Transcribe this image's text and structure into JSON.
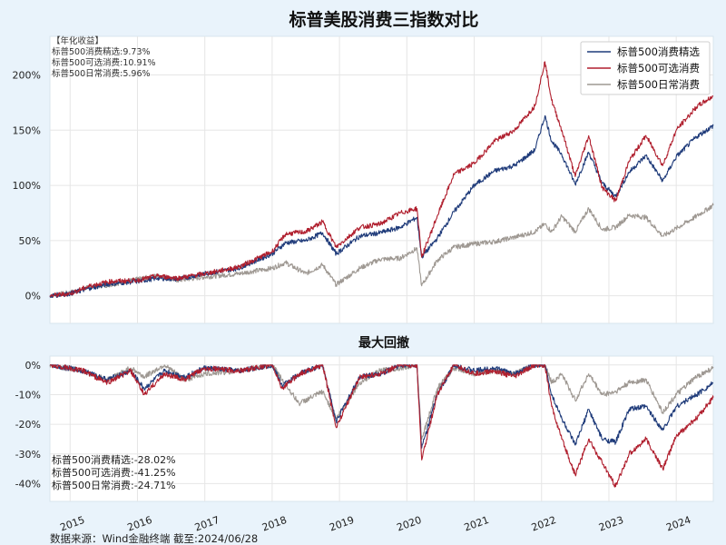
{
  "chart_data": [
    {
      "type": "line",
      "title": "标普美股消费三指数对比",
      "ylim": [
        -25,
        235
      ],
      "yticks": [
        "0%",
        "50%",
        "100%",
        "150%",
        "200%"
      ],
      "ytick_values": [
        0,
        50,
        100,
        150,
        200
      ],
      "xlim": [
        2014.7,
        2024.55
      ],
      "annual_return_header": "【年化收益】",
      "annual_returns": [
        "标普500消费精选:9.73%",
        "标普500可选消费:10.91%",
        "标普500日常消费:5.96%"
      ],
      "legend_position": "top-right",
      "series": [
        {
          "name": "标普500消费精选",
          "color": "#1f3b7a",
          "points": [
            [
              2014.7,
              0
            ],
            [
              2015.0,
              2
            ],
            [
              2015.3,
              7
            ],
            [
              2015.6,
              11
            ],
            [
              2016.0,
              13
            ],
            [
              2016.3,
              16
            ],
            [
              2016.6,
              15
            ],
            [
              2017.0,
              20
            ],
            [
              2017.5,
              25
            ],
            [
              2018.0,
              38
            ],
            [
              2018.2,
              48
            ],
            [
              2018.5,
              50
            ],
            [
              2018.75,
              57
            ],
            [
              2018.95,
              38
            ],
            [
              2019.3,
              54
            ],
            [
              2019.6,
              57
            ],
            [
              2019.9,
              62
            ],
            [
              2020.15,
              71
            ],
            [
              2020.22,
              35
            ],
            [
              2020.45,
              52
            ],
            [
              2020.7,
              76
            ],
            [
              2021.0,
              100
            ],
            [
              2021.3,
              113
            ],
            [
              2021.6,
              118
            ],
            [
              2021.9,
              132
            ],
            [
              2022.05,
              163
            ],
            [
              2022.15,
              140
            ],
            [
              2022.3,
              128
            ],
            [
              2022.5,
              101
            ],
            [
              2022.7,
              130
            ],
            [
              2022.9,
              102
            ],
            [
              2023.1,
              90
            ],
            [
              2023.3,
              112
            ],
            [
              2023.55,
              127
            ],
            [
              2023.8,
              104
            ],
            [
              2024.0,
              126
            ],
            [
              2024.3,
              144
            ],
            [
              2024.55,
              154
            ]
          ]
        },
        {
          "name": "标普500可选消费",
          "color": "#b01f2e",
          "points": [
            [
              2014.7,
              0
            ],
            [
              2015.0,
              2
            ],
            [
              2015.3,
              9
            ],
            [
              2015.6,
              13
            ],
            [
              2016.0,
              14
            ],
            [
              2016.3,
              18
            ],
            [
              2016.6,
              16
            ],
            [
              2017.0,
              20
            ],
            [
              2017.5,
              26
            ],
            [
              2018.0,
              40
            ],
            [
              2018.2,
              56
            ],
            [
              2018.5,
              58
            ],
            [
              2018.75,
              67
            ],
            [
              2018.95,
              44
            ],
            [
              2019.3,
              62
            ],
            [
              2019.6,
              65
            ],
            [
              2019.9,
              75
            ],
            [
              2020.15,
              79
            ],
            [
              2020.22,
              35
            ],
            [
              2020.45,
              72
            ],
            [
              2020.7,
              110
            ],
            [
              2021.0,
              120
            ],
            [
              2021.3,
              140
            ],
            [
              2021.6,
              150
            ],
            [
              2021.9,
              172
            ],
            [
              2022.05,
              212
            ],
            [
              2022.15,
              177
            ],
            [
              2022.3,
              150
            ],
            [
              2022.5,
              108
            ],
            [
              2022.7,
              145
            ],
            [
              2022.9,
              98
            ],
            [
              2023.1,
              86
            ],
            [
              2023.3,
              122
            ],
            [
              2023.55,
              145
            ],
            [
              2023.8,
              118
            ],
            [
              2024.0,
              150
            ],
            [
              2024.3,
              171
            ],
            [
              2024.55,
              181
            ]
          ]
        },
        {
          "name": "标普500日常消费",
          "color": "#9e9892",
          "points": [
            [
              2014.7,
              0
            ],
            [
              2015.0,
              3
            ],
            [
              2015.3,
              8
            ],
            [
              2015.6,
              10
            ],
            [
              2016.0,
              15
            ],
            [
              2016.3,
              18
            ],
            [
              2016.6,
              14
            ],
            [
              2017.0,
              17
            ],
            [
              2017.5,
              20
            ],
            [
              2018.0,
              25
            ],
            [
              2018.2,
              30
            ],
            [
              2018.5,
              20
            ],
            [
              2018.75,
              28
            ],
            [
              2018.95,
              10
            ],
            [
              2019.3,
              25
            ],
            [
              2019.6,
              33
            ],
            [
              2019.9,
              34
            ],
            [
              2020.15,
              43
            ],
            [
              2020.22,
              9
            ],
            [
              2020.45,
              32
            ],
            [
              2020.7,
              44
            ],
            [
              2021.0,
              47
            ],
            [
              2021.3,
              49
            ],
            [
              2021.6,
              53
            ],
            [
              2021.9,
              58
            ],
            [
              2022.05,
              65
            ],
            [
              2022.15,
              58
            ],
            [
              2022.3,
              72
            ],
            [
              2022.5,
              58
            ],
            [
              2022.7,
              79
            ],
            [
              2022.9,
              60
            ],
            [
              2023.1,
              62
            ],
            [
              2023.3,
              73
            ],
            [
              2023.55,
              71
            ],
            [
              2023.8,
              54
            ],
            [
              2024.0,
              61
            ],
            [
              2024.3,
              72
            ],
            [
              2024.55,
              82
            ]
          ]
        }
      ]
    },
    {
      "type": "area",
      "title": "最大回撤",
      "ylim": [
        -46,
        3
      ],
      "yticks": [
        "0%",
        "-10%",
        "-20%",
        "-30%",
        "-40%"
      ],
      "ytick_values": [
        0,
        -10,
        -20,
        -30,
        -40
      ],
      "xlim": [
        2014.7,
        2024.55
      ],
      "max_drawdown_notes": [
        "标普500消费精选:-28.02%",
        "标普500可选消费:-41.25%",
        "标普500日常消费:-24.71%"
      ],
      "series": [
        {
          "name": "标普500消费精选",
          "color": "#1f3b7a",
          "points": [
            [
              2014.7,
              0
            ],
            [
              2015.2,
              -2
            ],
            [
              2015.55,
              -5
            ],
            [
              2015.9,
              -2
            ],
            [
              2016.1,
              -8
            ],
            [
              2016.4,
              -2
            ],
            [
              2016.7,
              -4
            ],
            [
              2017.0,
              -1
            ],
            [
              2017.5,
              -2
            ],
            [
              2018.0,
              0
            ],
            [
              2018.15,
              -7
            ],
            [
              2018.4,
              -3
            ],
            [
              2018.75,
              0
            ],
            [
              2018.95,
              -19
            ],
            [
              2019.3,
              -4
            ],
            [
              2019.6,
              -3
            ],
            [
              2019.9,
              0
            ],
            [
              2020.15,
              0
            ],
            [
              2020.22,
              -28
            ],
            [
              2020.45,
              -10
            ],
            [
              2020.7,
              0
            ],
            [
              2021.0,
              -2
            ],
            [
              2021.3,
              -1
            ],
            [
              2021.6,
              -3
            ],
            [
              2021.9,
              0
            ],
            [
              2022.05,
              0
            ],
            [
              2022.15,
              -10
            ],
            [
              2022.3,
              -18
            ],
            [
              2022.5,
              -27
            ],
            [
              2022.7,
              -15
            ],
            [
              2022.9,
              -25
            ],
            [
              2023.1,
              -26
            ],
            [
              2023.3,
              -15
            ],
            [
              2023.55,
              -14
            ],
            [
              2023.8,
              -22
            ],
            [
              2024.0,
              -14
            ],
            [
              2024.3,
              -10
            ],
            [
              2024.55,
              -6
            ]
          ]
        },
        {
          "name": "标普500可选消费",
          "color": "#b01f2e",
          "points": [
            [
              2014.7,
              0
            ],
            [
              2015.2,
              -2
            ],
            [
              2015.55,
              -6
            ],
            [
              2015.9,
              -2
            ],
            [
              2016.1,
              -10
            ],
            [
              2016.4,
              -3
            ],
            [
              2016.7,
              -5
            ],
            [
              2017.0,
              -1
            ],
            [
              2017.5,
              -2
            ],
            [
              2018.0,
              0
            ],
            [
              2018.15,
              -8
            ],
            [
              2018.4,
              -3
            ],
            [
              2018.75,
              0
            ],
            [
              2018.95,
              -21
            ],
            [
              2019.3,
              -4
            ],
            [
              2019.6,
              -3
            ],
            [
              2019.9,
              0
            ],
            [
              2020.15,
              0
            ],
            [
              2020.22,
              -32
            ],
            [
              2020.45,
              -10
            ],
            [
              2020.7,
              0
            ],
            [
              2021.0,
              -3
            ],
            [
              2021.3,
              -2
            ],
            [
              2021.6,
              -4
            ],
            [
              2021.9,
              0
            ],
            [
              2022.05,
              0
            ],
            [
              2022.15,
              -14
            ],
            [
              2022.3,
              -25
            ],
            [
              2022.5,
              -37
            ],
            [
              2022.7,
              -25
            ],
            [
              2022.9,
              -33
            ],
            [
              2023.1,
              -41
            ],
            [
              2023.3,
              -30
            ],
            [
              2023.55,
              -25
            ],
            [
              2023.8,
              -35
            ],
            [
              2024.0,
              -24
            ],
            [
              2024.3,
              -18
            ],
            [
              2024.55,
              -11
            ]
          ]
        },
        {
          "name": "标普500日常消费",
          "color": "#9e9892",
          "points": [
            [
              2014.7,
              0
            ],
            [
              2015.2,
              -2
            ],
            [
              2015.55,
              -5
            ],
            [
              2015.9,
              -1
            ],
            [
              2016.1,
              -4
            ],
            [
              2016.4,
              0
            ],
            [
              2016.7,
              -5
            ],
            [
              2017.0,
              -3
            ],
            [
              2017.5,
              -2
            ],
            [
              2018.0,
              0
            ],
            [
              2018.15,
              -5
            ],
            [
              2018.4,
              -13
            ],
            [
              2018.75,
              -9
            ],
            [
              2018.95,
              -18
            ],
            [
              2019.3,
              -6
            ],
            [
              2019.6,
              -2
            ],
            [
              2019.9,
              -1
            ],
            [
              2020.15,
              0
            ],
            [
              2020.22,
              -25
            ],
            [
              2020.45,
              -8
            ],
            [
              2020.7,
              -1
            ],
            [
              2021.0,
              -3
            ],
            [
              2021.3,
              -2
            ],
            [
              2021.6,
              -3
            ],
            [
              2021.9,
              0
            ],
            [
              2022.05,
              0
            ],
            [
              2022.15,
              -6
            ],
            [
              2022.3,
              -3
            ],
            [
              2022.5,
              -12
            ],
            [
              2022.7,
              -3
            ],
            [
              2022.9,
              -10
            ],
            [
              2023.1,
              -9
            ],
            [
              2023.3,
              -6
            ],
            [
              2023.55,
              -5
            ],
            [
              2023.8,
              -16
            ],
            [
              2024.0,
              -10
            ],
            [
              2024.3,
              -4
            ],
            [
              2024.55,
              -1
            ]
          ]
        }
      ]
    }
  ],
  "x_years": [
    "2015",
    "2016",
    "2017",
    "2018",
    "2019",
    "2020",
    "2021",
    "2022",
    "2023",
    "2024"
  ],
  "source_note": "数据来源：Wind金融终端 截至:2024/06/28"
}
